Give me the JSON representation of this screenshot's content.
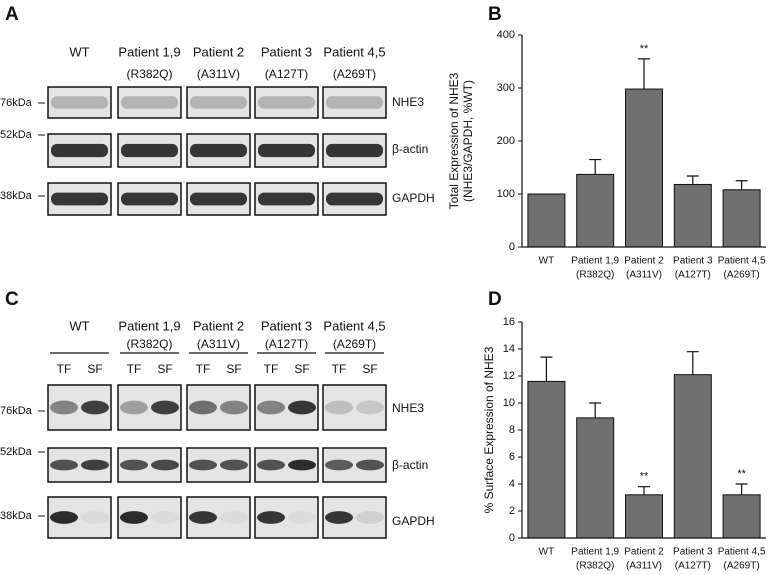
{
  "blots": [
    {
      "panel": "A",
      "lanes": [
        {
          "name": "WT",
          "variant": null
        },
        {
          "name": "Patient 1,9",
          "variant": "(R382Q)"
        },
        {
          "name": "Patient 2",
          "variant": "(A311V)"
        },
        {
          "name": "Patient 3",
          "variant": "(A127T)"
        },
        {
          "name": "Patient 4,5",
          "variant": "(A269T)"
        }
      ],
      "markers": [
        "76kDa",
        "52kDa",
        "38kDa"
      ],
      "rows": [
        "NHE3",
        "β-actin",
        "GAPDH"
      ]
    },
    {
      "panel": "C",
      "lanes": [
        {
          "name": "WT",
          "variant": null
        },
        {
          "name": "Patient 1,9",
          "variant": "(R382Q)"
        },
        {
          "name": "Patient 2",
          "variant": "(A311V)"
        },
        {
          "name": "Patient 3",
          "variant": "(A127T)"
        },
        {
          "name": "Patient 4,5",
          "variant": "(A269T)"
        }
      ],
      "fractions": [
        "TF",
        "SF"
      ],
      "markers": [
        "76kDa",
        "52kDa",
        "38kDa"
      ],
      "rows": [
        "NHE3",
        "β-actin",
        "GAPDH"
      ]
    }
  ],
  "chart_data": [
    {
      "type": "bar",
      "panel": "B",
      "ylabel": [
        "Total Expression of NHE3",
        "(NHE3/GAPDH, %WT)"
      ],
      "categories": [
        "WT",
        "Patient 1,9",
        "Patient 2",
        "Patient 3",
        "Patient 4,5"
      ],
      "subcategories": [
        null,
        "(R382Q)",
        "(A311V)",
        "(A127T)",
        "(A269T)"
      ],
      "values": [
        100,
        137,
        298,
        118,
        108
      ],
      "errors": [
        null,
        28,
        57,
        16,
        17
      ],
      "significance": [
        null,
        null,
        "**",
        null,
        null
      ],
      "color": "#707070",
      "ylim": [
        0,
        400
      ],
      "yticks": [
        0,
        100,
        200,
        300,
        400
      ]
    },
    {
      "type": "bar",
      "panel": "D",
      "ylabel": [
        "% Surface Expression of NHE3"
      ],
      "categories": [
        "WT",
        "Patient 1,9",
        "Patient 2",
        "Patient 3",
        "Patient 4,5"
      ],
      "subcategories": [
        null,
        "(R382Q)",
        "(A311V)",
        "(A127T)",
        "(A269T)"
      ],
      "values": [
        11.6,
        8.9,
        3.2,
        12.1,
        3.2
      ],
      "errors": [
        1.8,
        1.1,
        0.6,
        1.7,
        0.8
      ],
      "significance": [
        null,
        null,
        "**",
        null,
        "**"
      ],
      "color": "#707070",
      "ylim": [
        0,
        16
      ],
      "yticks": [
        0,
        2,
        4,
        6,
        8,
        10,
        12,
        14,
        16
      ]
    }
  ]
}
